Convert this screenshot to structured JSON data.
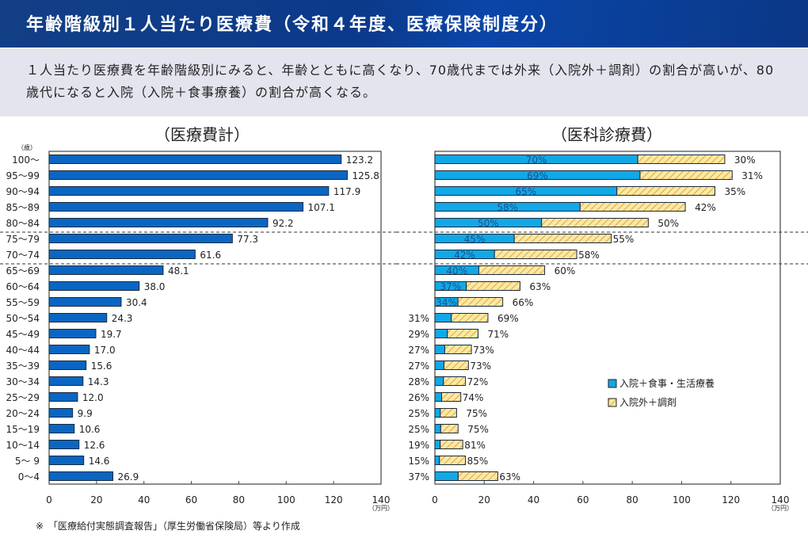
{
  "header": {
    "title": "年齢階級別１人当たり医療費（令和４年度、医療保険制度分）"
  },
  "summary": {
    "text": "１人当たり医療費を年齢階級別にみると、年齢とともに高くなり、70歳代までは外来（入院外＋調剤）の割合が高いが、80歳代になると入院（入院＋食事療養）の割合が高くなる。"
  },
  "footnote": "※　「医療給付実態調査報告」（厚生労働省保険局）等より作成",
  "colors": {
    "header_bg": "#0c3a8a",
    "total_bar": "#0a66c2",
    "inpatient_bar": "#12a8e6",
    "outpatient_fill": "#fbe6a2",
    "outpatient_hatch": "#e8b83a"
  },
  "chart_data": [
    {
      "type": "bar",
      "orientation": "horizontal",
      "title": "（医療費計）",
      "ylabel": "（歳）",
      "xlabel": "（万円）",
      "xlim": [
        0,
        140
      ],
      "xticks": [
        0,
        20,
        40,
        60,
        80,
        100,
        120,
        140
      ],
      "categories": [
        "100～",
        "95～99",
        "90～94",
        "85～89",
        "80～84",
        "75～79",
        "70～74",
        "65～69",
        "60～64",
        "55～59",
        "50～54",
        "45～49",
        "40～44",
        "35～39",
        "30～34",
        "25～29",
        "20～24",
        "15～19",
        "10～14",
        "5～ 9",
        "0～4"
      ],
      "values": [
        123.2,
        125.8,
        117.9,
        107.1,
        92.2,
        77.3,
        61.6,
        48.1,
        38.0,
        30.4,
        24.3,
        19.7,
        17.0,
        15.6,
        14.3,
        12.0,
        9.9,
        10.6,
        12.6,
        14.6,
        26.9
      ],
      "value_labels": [
        "123.2",
        "125.8",
        "117.9",
        "107.1",
        "92.2",
        "77.3",
        "61.6",
        "48.1",
        "38.0",
        "30.4",
        "24.3",
        "19.7",
        "17.0",
        "15.6",
        "14.3",
        "12.0",
        "9.9",
        "10.6",
        "12.6",
        "14.6",
        "26.9"
      ],
      "separators_after": [
        "80～84",
        "70～74"
      ],
      "grid": false
    },
    {
      "type": "bar",
      "orientation": "horizontal",
      "stacked": true,
      "title": "（医科診療費）",
      "xlabel": "（万円）",
      "xlim": [
        0,
        140
      ],
      "xticks": [
        0,
        20,
        40,
        60,
        80,
        100,
        120,
        140
      ],
      "categories": [
        "100～",
        "95～99",
        "90～94",
        "85～89",
        "80～84",
        "75～79",
        "70～74",
        "65～69",
        "60～64",
        "55～59",
        "50～54",
        "45～49",
        "40～44",
        "35～39",
        "30～34",
        "25～29",
        "20～24",
        "15～19",
        "10～14",
        "5～ 9",
        "0～4"
      ],
      "totals": [
        117.5,
        120.5,
        113.5,
        101.5,
        86.5,
        71.5,
        57.5,
        44.5,
        34.5,
        27.5,
        21.5,
        17.5,
        14.8,
        13.6,
        12.4,
        10.5,
        8.8,
        9.4,
        11.3,
        12.4,
        25.5
      ],
      "series": [
        {
          "name": "入院＋食事・生活療養",
          "percent": [
            70,
            69,
            65,
            58,
            50,
            45,
            42,
            40,
            37,
            34,
            31,
            29,
            27,
            27,
            28,
            26,
            25,
            25,
            19,
            15,
            37
          ]
        },
        {
          "name": "入院外＋調剤",
          "percent": [
            30,
            31,
            35,
            42,
            50,
            55,
            58,
            60,
            63,
            66,
            69,
            71,
            73,
            73,
            72,
            74,
            75,
            75,
            81,
            85,
            63
          ]
        }
      ],
      "inside_label_rows": 10,
      "legend": [
        "入院＋食事・生活療養",
        "入院外＋調剤"
      ],
      "legend_position": "center-right",
      "separators_after": [
        "80～84",
        "70～74"
      ],
      "grid": false
    }
  ]
}
